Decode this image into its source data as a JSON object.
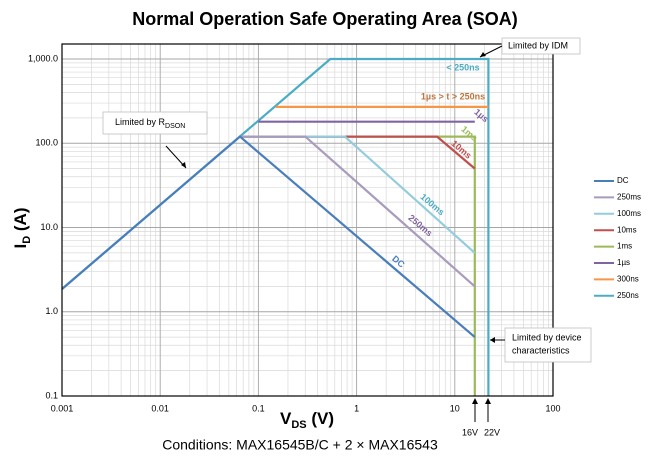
{
  "chart_data": {
    "type": "line",
    "title": "Normal Operation Safe Operating Area (SOA)",
    "xlabel": [
      "V",
      "DS",
      " (V)"
    ],
    "ylabel": [
      "I",
      "D",
      " (A)"
    ],
    "log_x": true,
    "log_y": true,
    "xlim": [
      0.001,
      100
    ],
    "ylim": [
      0.1,
      1000
    ],
    "xticks": [
      0.001,
      0.01,
      0.1,
      1,
      10,
      100
    ],
    "yticks": [
      0.1,
      {
        "value": 1,
        "label": "1.0"
      },
      {
        "value": 10,
        "label": "10.0"
      },
      {
        "value": 100,
        "label": "100.0"
      },
      {
        "value": 1000,
        "label": "1,000.0"
      }
    ],
    "grid": true,
    "minor_grid": true,
    "legend": "right",
    "series": [
      {
        "name": "DC",
        "color": "#4a7ebb",
        "x": [
          0.001,
          0.065,
          16
        ],
        "values": [
          1.86,
          120,
          0.5
        ]
      },
      {
        "name": "250ms",
        "color": "#a99bbd",
        "x": [
          0.065,
          0.3,
          16
        ],
        "values": [
          120,
          120,
          2
        ]
      },
      {
        "name": "100ms",
        "color": "#93cddd",
        "x": [
          0.065,
          0.76,
          16
        ],
        "values": [
          120,
          120,
          5
        ]
      },
      {
        "name": "10ms",
        "color": "#c0504d",
        "x": [
          0.065,
          6.6,
          16
        ],
        "values": [
          120,
          120,
          50
        ]
      },
      {
        "name": "1ms",
        "color": "#9bbb59",
        "x": [
          0.065,
          16,
          16
        ],
        "values": [
          120,
          120,
          0.1
        ]
      },
      {
        "name": "1µs",
        "color": "#8064a2",
        "x": [
          0.1,
          16
        ],
        "values": [
          180,
          180
        ]
      },
      {
        "name": "300ns",
        "color": "#f79646",
        "x": [
          0.15,
          22
        ],
        "values": [
          270,
          270
        ]
      },
      {
        "name": "250ns",
        "color": "#4bacc6",
        "x": [
          0.001,
          0.54,
          22,
          22
        ],
        "values": [
          1.86,
          1000,
          1000,
          0.1
        ]
      }
    ],
    "curve_labels": [
      "< 250ns",
      "1µs > t > 250ns",
      "1µs",
      "1ms",
      "10ms",
      "100ms",
      "250ms",
      "DC"
    ],
    "annotations": {
      "idm": "Limited by IDM",
      "rdson": [
        "Limited by R",
        "DSON"
      ],
      "device": [
        "Limited by device",
        "characteristics"
      ],
      "v16": "16V",
      "v22": "22V"
    },
    "conditions": "Conditions: MAX16545B/C + 2 × MAX16543"
  }
}
